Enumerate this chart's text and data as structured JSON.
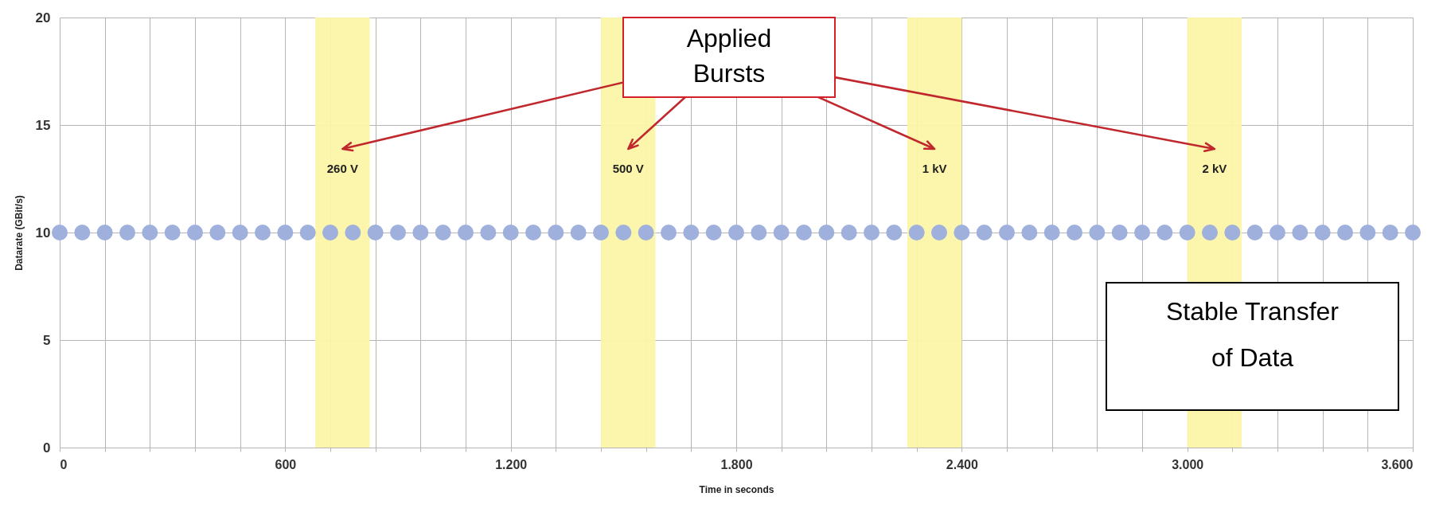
{
  "chart_data": {
    "type": "scatter",
    "xlabel": "Time in seconds",
    "ylabel": "Datarate (GBit/s)",
    "x": [
      0,
      60,
      120,
      180,
      240,
      300,
      360,
      420,
      480,
      540,
      600,
      660,
      720,
      780,
      840,
      900,
      960,
      1020,
      1080,
      1140,
      1200,
      1260,
      1320,
      1380,
      1440,
      1500,
      1560,
      1620,
      1680,
      1740,
      1800,
      1860,
      1920,
      1980,
      2040,
      2100,
      2160,
      2220,
      2280,
      2340,
      2400,
      2460,
      2520,
      2580,
      2640,
      2700,
      2760,
      2820,
      2880,
      2940,
      3000,
      3060,
      3120,
      3180,
      3240,
      3300,
      3360,
      3420,
      3480,
      3540,
      3600
    ],
    "series": [
      {
        "color": "#9fb0dc",
        "values": [
          10,
          10,
          10,
          10,
          10,
          10,
          10,
          10,
          10,
          10,
          10,
          10,
          10,
          10,
          10,
          10,
          10,
          10,
          10,
          10,
          10,
          10,
          10,
          10,
          10,
          10,
          10,
          10,
          10,
          10,
          10,
          10,
          10,
          10,
          10,
          10,
          10,
          10,
          10,
          10,
          10,
          10,
          10,
          10,
          10,
          10,
          10,
          10,
          10,
          10,
          10,
          10,
          10,
          10,
          10,
          10,
          10,
          10,
          10,
          10,
          10
        ]
      }
    ],
    "xlim": [
      0,
      3600
    ],
    "ylim": [
      0,
      20
    ],
    "xticks": [
      0,
      {
        "value": 120,
        "label": null
      },
      {
        "value": 240,
        "label": null
      },
      {
        "value": 360,
        "label": null
      },
      {
        "value": 480,
        "label": null
      },
      600,
      {
        "value": 720,
        "label": null
      },
      {
        "value": 840,
        "label": null
      },
      {
        "value": 960,
        "label": null
      },
      {
        "value": 1080,
        "label": null
      },
      {
        "value": 1200,
        "label": "1.200"
      },
      {
        "value": 1320,
        "label": null
      },
      {
        "value": 1440,
        "label": null
      },
      {
        "value": 1560,
        "label": null
      },
      {
        "value": 1680,
        "label": null
      },
      {
        "value": 1800,
        "label": "1.800"
      },
      {
        "value": 1920,
        "label": null
      },
      {
        "value": 2040,
        "label": null
      },
      {
        "value": 2160,
        "label": null
      },
      {
        "value": 2280,
        "label": null
      },
      {
        "value": 2400,
        "label": "2.400"
      },
      {
        "value": 2520,
        "label": null
      },
      {
        "value": 2640,
        "label": null
      },
      {
        "value": 2760,
        "label": null
      },
      {
        "value": 2880,
        "label": null
      },
      {
        "value": 3000,
        "label": "3.000"
      },
      {
        "value": 3120,
        "label": null
      },
      {
        "value": 3240,
        "label": null
      },
      {
        "value": 3360,
        "label": null
      },
      {
        "value": 3480,
        "label": null
      },
      {
        "value": 3600,
        "label": "3.600"
      }
    ],
    "yticks": [
      0,
      5,
      10,
      15,
      20
    ],
    "grid": true,
    "marker": "circle",
    "bands": [
      {
        "axis": "x",
        "from": 680,
        "to": 825,
        "label": "260 V",
        "color": "#fbf6a6"
      },
      {
        "axis": "x",
        "from": 1440,
        "to": 1585,
        "label": "500 V",
        "color": "#fbf6a6"
      },
      {
        "axis": "x",
        "from": 2255,
        "to": 2400,
        "label": "1 kV",
        "color": "#fbf6a6"
      },
      {
        "axis": "x",
        "from": 3000,
        "to": 3145,
        "label": "2 kV",
        "color": "#fbf6a6"
      }
    ],
    "annotations": [
      "Applied Bursts",
      "Stable Transfer of Data"
    ]
  }
}
